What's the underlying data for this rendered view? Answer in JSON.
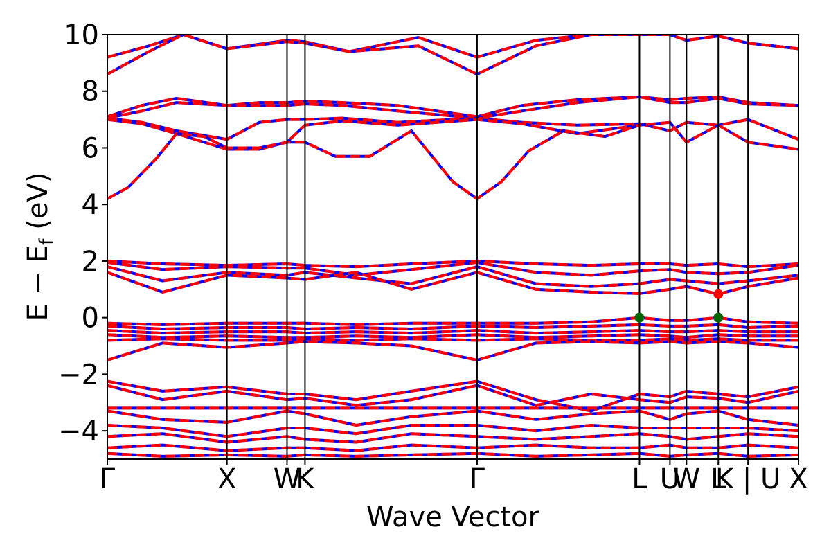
{
  "chart_data": {
    "type": "line",
    "title": "",
    "xlabel": "Wave Vector",
    "ylabel": "E − E_f (eV)",
    "ylabel_parts": {
      "main": "E  −  E",
      "sub": "f",
      "unit": " (eV)"
    },
    "ylim": [
      -5,
      10
    ],
    "yticks": [
      -4,
      -2,
      0,
      2,
      4,
      6,
      8,
      10
    ],
    "ytick_labels": [
      "−4",
      "−2",
      "0",
      "2",
      "4",
      "6",
      "8",
      "10"
    ],
    "xlim": [
      0,
      10
    ],
    "kpoints": [
      {
        "label": "Γ",
        "x": 0.0
      },
      {
        "label": "X",
        "x": 1.73
      },
      {
        "label": "W",
        "x": 2.6
      },
      {
        "label": "K",
        "x": 2.86
      },
      {
        "label": "Γ",
        "x": 5.35
      },
      {
        "label": "L",
        "x": 7.7
      },
      {
        "label": "U",
        "x": 8.14
      },
      {
        "label": "W",
        "x": 8.38
      },
      {
        "label": "L",
        "x": 8.84
      },
      {
        "label": "K | U",
        "x": 9.27
      },
      {
        "label": "X",
        "x": 10.0
      }
    ],
    "series_styles": {
      "spin_up": "#0000ff",
      "spin_down": "#ff0000"
    },
    "markers": [
      {
        "name": "vbm",
        "x": 7.7,
        "y": 0.0,
        "color": "#006400"
      },
      {
        "name": "vbm",
        "x": 8.84,
        "y": 0.0,
        "color": "#006400"
      },
      {
        "name": "cbm",
        "x": 8.84,
        "y": 0.83,
        "color": "#ff0000"
      }
    ],
    "bands": [
      {
        "x": [
          0,
          0.6,
          1.1,
          1.73,
          2.6,
          2.86,
          3.5,
          4.5,
          5.35,
          6.2,
          7.0,
          7.7,
          8.14,
          8.38,
          8.84,
          9.27,
          10
        ],
        "y": [
          9.2,
          9.6,
          10.0,
          9.5,
          9.8,
          9.75,
          9.4,
          9.9,
          9.2,
          9.8,
          10.0,
          10.0,
          10.0,
          9.8,
          9.95,
          9.7,
          9.5
        ]
      },
      {
        "x": [
          0,
          0.6,
          1.1,
          1.73,
          2.6,
          2.86,
          3.5,
          4.5,
          5.35,
          6.2,
          7.0,
          7.7,
          8.14,
          8.38,
          8.84,
          9.27,
          10
        ],
        "y": [
          8.6,
          9.4,
          10.0,
          9.5,
          9.75,
          9.7,
          9.4,
          9.6,
          8.6,
          9.6,
          10.0,
          10.0,
          10.0,
          9.8,
          9.95,
          9.7,
          9.5
        ]
      },
      {
        "x": [
          0,
          0.5,
          1.0,
          1.73,
          2.2,
          2.6,
          2.86,
          3.4,
          4.2,
          5.35,
          6.0,
          6.8,
          7.7,
          8.14,
          8.38,
          8.84,
          9.27,
          10
        ],
        "y": [
          7.1,
          7.5,
          7.75,
          7.5,
          7.6,
          7.6,
          7.65,
          7.6,
          7.5,
          7.1,
          7.5,
          7.7,
          7.8,
          7.7,
          7.75,
          7.8,
          7.6,
          7.5
        ]
      },
      {
        "x": [
          0,
          0.5,
          1.0,
          1.73,
          2.2,
          2.6,
          2.86,
          3.4,
          4.2,
          5.35,
          6.0,
          6.8,
          7.7,
          8.14,
          8.38,
          8.84,
          9.27,
          10
        ],
        "y": [
          7.05,
          7.3,
          7.6,
          7.5,
          7.5,
          7.5,
          7.55,
          7.5,
          7.3,
          7.05,
          7.3,
          7.6,
          7.8,
          7.6,
          7.6,
          7.75,
          7.55,
          7.5
        ]
      },
      {
        "x": [
          0,
          0.5,
          1.0,
          1.73,
          2.2,
          2.6,
          2.86,
          3.4,
          4.2,
          5.35,
          6.0,
          6.8,
          7.7,
          8.14,
          8.38,
          8.84,
          9.27,
          10
        ],
        "y": [
          7.05,
          6.9,
          6.6,
          6.3,
          6.9,
          7.0,
          7.0,
          7.05,
          6.9,
          7.05,
          6.9,
          6.8,
          6.85,
          6.6,
          6.9,
          6.8,
          7.0,
          6.3
        ]
      },
      {
        "x": [
          0,
          0.5,
          1.0,
          1.73,
          2.2,
          2.6,
          2.86,
          3.4,
          4.2,
          5.35,
          6.0,
          6.8,
          7.7,
          8.14,
          8.38,
          8.84,
          9.27,
          10
        ],
        "y": [
          7.0,
          6.85,
          6.5,
          5.95,
          5.95,
          6.2,
          6.8,
          6.95,
          6.8,
          7.0,
          6.85,
          6.5,
          6.8,
          6.9,
          6.2,
          6.8,
          6.2,
          5.95
        ]
      },
      {
        "x": [
          0,
          0.3,
          0.7,
          1.0,
          1.4,
          1.73,
          2.2,
          2.6,
          2.86,
          3.3,
          3.8,
          4.4,
          5.0,
          5.35,
          5.7,
          6.1,
          6.6,
          7.2,
          7.7
        ],
        "y": [
          4.2,
          4.6,
          5.6,
          6.5,
          6.4,
          6.0,
          6.0,
          6.2,
          6.2,
          5.7,
          5.7,
          6.6,
          4.8,
          4.2,
          4.8,
          5.9,
          6.6,
          6.4,
          6.8
        ]
      },
      {
        "x": [
          0,
          0.8,
          1.73,
          2.6,
          2.86,
          3.6,
          4.4,
          5.35,
          6.2,
          7.0,
          7.7,
          8.14,
          8.38,
          8.84,
          9.27,
          10
        ],
        "y": [
          2.0,
          1.9,
          1.85,
          1.9,
          1.85,
          1.8,
          1.9,
          2.0,
          1.9,
          1.85,
          1.9,
          1.9,
          1.85,
          1.9,
          1.8,
          1.9
        ]
      },
      {
        "x": [
          0,
          0.8,
          1.73,
          2.6,
          2.86,
          3.6,
          4.4,
          5.35,
          6.2,
          7.0,
          7.7,
          8.14,
          8.38,
          8.84,
          9.27,
          10
        ],
        "y": [
          1.95,
          1.7,
          1.8,
          1.75,
          1.75,
          1.5,
          1.7,
          1.95,
          1.6,
          1.5,
          1.65,
          1.7,
          1.6,
          1.55,
          1.6,
          1.85
        ]
      },
      {
        "x": [
          0,
          0.8,
          1.73,
          2.6,
          2.86,
          3.6,
          4.4,
          5.35,
          6.2,
          7.0,
          7.7,
          8.14,
          8.38,
          8.84,
          9.27,
          10
        ],
        "y": [
          1.8,
          1.3,
          1.6,
          1.5,
          1.6,
          1.4,
          1.2,
          1.8,
          1.2,
          1.1,
          1.2,
          1.35,
          1.3,
          1.2,
          1.3,
          1.5
        ]
      },
      {
        "x": [
          0,
          0.8,
          1.73,
          2.6,
          2.86,
          3.6,
          4.4,
          5.35,
          6.2,
          7.0,
          7.7,
          8.14,
          8.38,
          8.84,
          9.27,
          10
        ],
        "y": [
          1.6,
          0.9,
          1.5,
          1.4,
          1.35,
          1.6,
          1.0,
          1.6,
          1.0,
          0.9,
          0.85,
          1.0,
          1.1,
          0.83,
          1.1,
          1.4
        ]
      },
      {
        "x": [
          0,
          0.8,
          1.73,
          2.6,
          2.86,
          3.6,
          4.4,
          5.35,
          6.2,
          7.0,
          7.7,
          8.14,
          8.38,
          8.84,
          9.27,
          10
        ],
        "y": [
          -0.2,
          -0.25,
          -0.2,
          -0.2,
          -0.2,
          -0.25,
          -0.2,
          -0.2,
          -0.2,
          -0.15,
          0.0,
          -0.1,
          -0.1,
          0.0,
          -0.15,
          -0.2
        ]
      },
      {
        "x": [
          0,
          0.8,
          1.73,
          2.6,
          2.86,
          3.6,
          4.4,
          5.35,
          6.2,
          7.0,
          7.7,
          8.14,
          8.38,
          8.84,
          9.27,
          10
        ],
        "y": [
          -0.3,
          -0.4,
          -0.35,
          -0.35,
          -0.4,
          -0.35,
          -0.4,
          -0.3,
          -0.35,
          -0.3,
          -0.25,
          -0.3,
          -0.3,
          -0.25,
          -0.35,
          -0.3
        ]
      },
      {
        "x": [
          0,
          0.8,
          1.73,
          2.6,
          2.86,
          3.6,
          4.4,
          5.35,
          6.2,
          7.0,
          7.7,
          8.14,
          8.38,
          8.84,
          9.27,
          10
        ],
        "y": [
          -0.45,
          -0.55,
          -0.5,
          -0.5,
          -0.55,
          -0.5,
          -0.55,
          -0.45,
          -0.55,
          -0.5,
          -0.45,
          -0.5,
          -0.5,
          -0.45,
          -0.5,
          -0.5
        ]
      },
      {
        "x": [
          0,
          0.8,
          1.73,
          2.6,
          2.86,
          3.6,
          4.4,
          5.35,
          6.2,
          7.0,
          7.7,
          8.14,
          8.38,
          8.84,
          9.27,
          10
        ],
        "y": [
          -0.6,
          -0.7,
          -0.65,
          -0.7,
          -0.7,
          -0.65,
          -0.7,
          -0.6,
          -0.7,
          -0.65,
          -0.6,
          -0.65,
          -0.7,
          -0.6,
          -0.65,
          -0.65
        ]
      },
      {
        "x": [
          0,
          0.8,
          1.73,
          2.6,
          2.86,
          3.6,
          4.4,
          5.35,
          6.2,
          7.0,
          7.7,
          8.14,
          8.38,
          8.84,
          9.27,
          10
        ],
        "y": [
          -0.8,
          -0.75,
          -0.8,
          -0.8,
          -0.75,
          -0.8,
          -0.75,
          -0.8,
          -0.75,
          -0.8,
          -0.8,
          -0.75,
          -0.8,
          -0.75,
          -0.8,
          -0.8
        ]
      },
      {
        "x": [
          0,
          0.8,
          1.73,
          2.6,
          2.86,
          3.6,
          4.4,
          5.35,
          6.2,
          7.0,
          7.7,
          8.14,
          8.38,
          8.84,
          9.27,
          10
        ],
        "y": [
          -1.5,
          -0.9,
          -1.05,
          -0.9,
          -0.85,
          -0.9,
          -1.0,
          -1.5,
          -0.9,
          -0.85,
          -0.9,
          -0.85,
          -0.9,
          -0.85,
          -0.9,
          -1.05
        ]
      },
      {
        "x": [
          0,
          0.8,
          1.73,
          2.6,
          2.86,
          3.6,
          4.4,
          5.35,
          6.2,
          7.0,
          7.7,
          8.14,
          8.38,
          8.84,
          9.27,
          10
        ],
        "y": [
          -2.25,
          -2.6,
          -2.45,
          -2.7,
          -2.7,
          -2.9,
          -2.6,
          -2.25,
          -2.9,
          -3.3,
          -2.7,
          -2.8,
          -2.6,
          -2.7,
          -2.8,
          -2.45
        ]
      },
      {
        "x": [
          0,
          0.8,
          1.73,
          2.6,
          2.86,
          3.6,
          4.4,
          5.35,
          6.2,
          7.0,
          7.7,
          8.14,
          8.38,
          8.84,
          9.27,
          10
        ],
        "y": [
          -2.4,
          -2.9,
          -2.6,
          -2.9,
          -2.85,
          -3.1,
          -2.9,
          -2.4,
          -3.1,
          -2.7,
          -2.9,
          -3.0,
          -2.8,
          -2.85,
          -3.0,
          -2.6
        ]
      },
      {
        "x": [
          0,
          0.8,
          1.73,
          2.6,
          2.86,
          3.6,
          4.4,
          5.35,
          6.2,
          7.0,
          7.7,
          8.14,
          8.38,
          8.84,
          9.27,
          10
        ],
        "y": [
          -3.2,
          -3.2,
          -3.2,
          -3.2,
          -3.2,
          -3.2,
          -3.2,
          -3.2,
          -3.2,
          -3.2,
          -3.2,
          -3.2,
          -3.2,
          -3.2,
          -3.2,
          -3.2
        ]
      },
      {
        "x": [
          0,
          0.8,
          1.73,
          2.6,
          2.86,
          3.6,
          4.4,
          5.35,
          6.2,
          7.0,
          7.7,
          8.14,
          8.38,
          8.84,
          9.27,
          10
        ],
        "y": [
          -3.3,
          -3.6,
          -3.7,
          -3.3,
          -3.4,
          -3.8,
          -3.5,
          -3.3,
          -3.6,
          -3.4,
          -3.3,
          -3.6,
          -3.4,
          -3.3,
          -3.6,
          -3.8
        ]
      },
      {
        "x": [
          0,
          0.8,
          1.73,
          2.6,
          2.86,
          3.6,
          4.4,
          5.35,
          6.2,
          7.0,
          7.7,
          8.14,
          8.38,
          8.84,
          9.27,
          10
        ],
        "y": [
          -3.8,
          -3.9,
          -4.2,
          -3.9,
          -3.9,
          -4.1,
          -3.8,
          -3.8,
          -4.0,
          -3.8,
          -3.9,
          -3.9,
          -3.9,
          -3.9,
          -3.9,
          -4.0
        ]
      },
      {
        "x": [
          0,
          0.8,
          1.73,
          2.6,
          2.86,
          3.6,
          4.4,
          5.35,
          6.2,
          7.0,
          7.7,
          8.14,
          8.38,
          8.84,
          9.27,
          10
        ],
        "y": [
          -4.2,
          -4.1,
          -4.4,
          -4.2,
          -4.3,
          -4.4,
          -4.1,
          -4.2,
          -4.3,
          -4.2,
          -4.1,
          -4.2,
          -4.3,
          -4.2,
          -4.1,
          -4.2
        ]
      },
      {
        "x": [
          0,
          0.8,
          1.73,
          2.6,
          2.86,
          3.6,
          4.4,
          5.35,
          6.2,
          7.0,
          7.7,
          8.14,
          8.38,
          8.84,
          9.27,
          10
        ],
        "y": [
          -4.6,
          -4.5,
          -4.7,
          -4.6,
          -4.6,
          -4.7,
          -4.5,
          -4.6,
          -4.5,
          -4.6,
          -4.6,
          -4.5,
          -4.6,
          -4.6,
          -4.5,
          -4.6
        ]
      },
      {
        "x": [
          0,
          0.8,
          1.73,
          2.6,
          2.86,
          3.6,
          4.4,
          5.35,
          6.2,
          7.0,
          7.7,
          8.14,
          8.38,
          8.84,
          9.27,
          10
        ],
        "y": [
          -4.8,
          -4.9,
          -4.85,
          -4.9,
          -4.85,
          -4.9,
          -4.85,
          -4.8,
          -4.9,
          -4.85,
          -4.8,
          -4.9,
          -4.85,
          -4.8,
          -4.9,
          -4.85
        ]
      }
    ]
  }
}
